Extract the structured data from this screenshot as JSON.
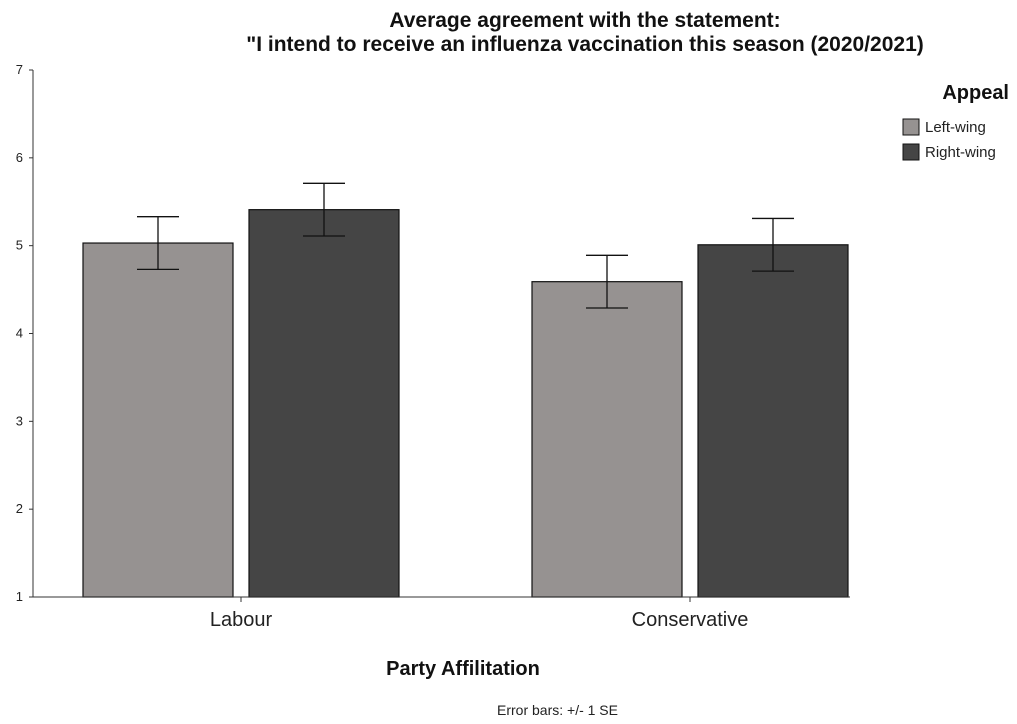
{
  "chart_data": {
    "type": "bar",
    "title_lines": [
      "Average agreement with the statement:",
      "\"I intend to receive an influenza vaccination this season (2020/2021)"
    ],
    "xlabel": "Party Affilitation",
    "ylabel": "",
    "ylim": [
      1,
      7
    ],
    "yticks": [
      "1",
      "2",
      "3",
      "4",
      "5",
      "6",
      "7"
    ],
    "categories": [
      "Labour",
      "Conservative"
    ],
    "legend_title": "Appeal",
    "legend_position": "top-right",
    "series": [
      {
        "name": "Left-wing",
        "color": "#969291",
        "values": [
          5.03,
          4.59
        ],
        "se": [
          0.3,
          0.3
        ]
      },
      {
        "name": "Right-wing",
        "color": "#454545",
        "values": [
          5.41,
          5.01
        ],
        "se": [
          0.3,
          0.3
        ]
      }
    ],
    "grid": false,
    "footnote": "Error bars: +/- 1 SE"
  }
}
